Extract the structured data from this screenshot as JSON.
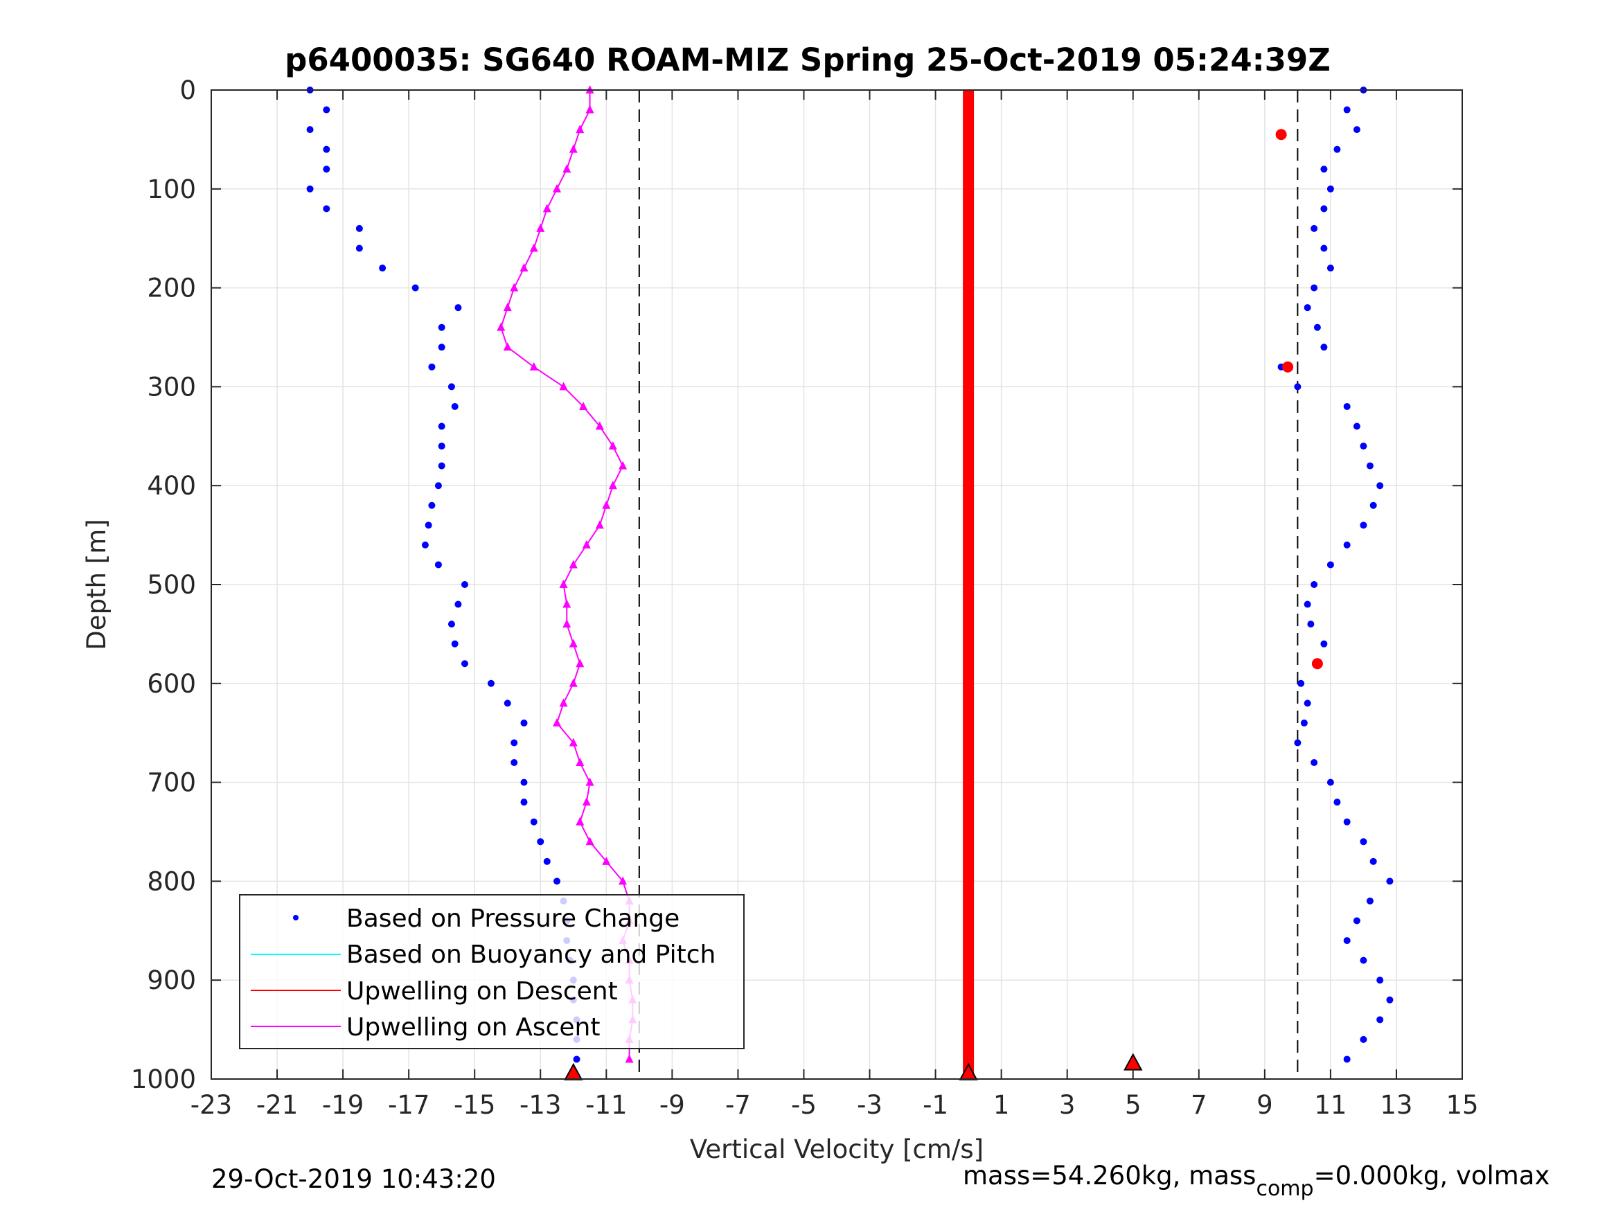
{
  "chart_data": {
    "type": "scatter",
    "title": "p6400035: SG640 ROAM-MIZ Spring 25-Oct-2019 05:24:39Z",
    "xlabel": "Vertical Velocity [cm/s]",
    "ylabel": "Depth [m]",
    "xlim": [
      -23,
      15
    ],
    "ylim": [
      0,
      1000
    ],
    "y_reversed": true,
    "x_ticks": [
      -23,
      -21,
      -19,
      -17,
      -15,
      -13,
      -11,
      -9,
      -7,
      -5,
      -3,
      -1,
      1,
      3,
      5,
      7,
      9,
      11,
      13,
      15
    ],
    "y_ticks": [
      0,
      100,
      200,
      300,
      400,
      500,
      600,
      700,
      800,
      900,
      1000
    ],
    "grid": true,
    "legend_position": "bottom-left",
    "reference_lines_x": [
      -10,
      10
    ],
    "colors": {
      "pressure": "#0000ff",
      "buoyancy": "#00ffff",
      "descent": "#ff0000",
      "ascent": "#ff00ff",
      "reference": "#000000"
    },
    "series": [
      {
        "name": "Based on Pressure Change",
        "style": "dots",
        "descent_profile": {
          "depth": [
            0,
            20,
            40,
            60,
            80,
            100,
            120,
            140,
            160,
            180,
            200,
            220,
            240,
            260,
            280,
            300,
            320,
            340,
            360,
            380,
            400,
            420,
            440,
            460,
            480,
            500,
            520,
            540,
            560,
            580,
            600,
            620,
            640,
            660,
            680,
            700,
            720,
            740,
            760,
            780,
            800,
            820,
            840,
            860,
            880,
            900,
            920,
            940,
            960,
            980
          ],
          "velocity": [
            -20,
            -19.5,
            -20,
            -19.5,
            -19.5,
            -20,
            -19.5,
            -18.5,
            -18.5,
            -17.8,
            -16.8,
            -15.5,
            -16,
            -16,
            -16.3,
            -15.7,
            -15.6,
            -16,
            -16,
            -16,
            -16.1,
            -16.3,
            -16.4,
            -16.5,
            -16.1,
            -15.3,
            -15.5,
            -15.7,
            -15.6,
            -15.3,
            -14.5,
            -14,
            -13.5,
            -13.8,
            -13.8,
            -13.5,
            -13.5,
            -13.2,
            -13,
            -12.8,
            -12.5,
            -12.3,
            -12.2,
            -12.2,
            -12.1,
            -12,
            -12,
            -11.9,
            -11.9,
            -11.9
          ]
        },
        "ascent_profile": {
          "depth": [
            0,
            20,
            40,
            60,
            80,
            100,
            120,
            140,
            160,
            180,
            200,
            220,
            240,
            260,
            280,
            300,
            320,
            340,
            360,
            380,
            400,
            420,
            440,
            460,
            480,
            500,
            520,
            540,
            560,
            580,
            600,
            620,
            640,
            660,
            680,
            700,
            720,
            740,
            760,
            780,
            800,
            820,
            840,
            860,
            880,
            900,
            920,
            940,
            960,
            980
          ],
          "velocity": [
            12,
            11.5,
            11.8,
            11.2,
            10.8,
            11,
            10.8,
            10.5,
            10.8,
            11,
            10.5,
            10.3,
            10.6,
            10.8,
            9.5,
            10,
            11.5,
            11.8,
            12,
            12.2,
            12.5,
            12.3,
            12,
            11.5,
            11,
            10.5,
            10.3,
            10.4,
            10.8,
            10.6,
            10.1,
            10.3,
            10.2,
            10,
            10.5,
            11,
            11.2,
            11.5,
            12,
            12.3,
            12.8,
            12.2,
            11.8,
            11.5,
            12,
            12.5,
            12.8,
            12.5,
            12,
            11.5
          ]
        }
      },
      {
        "name": "Based on Buoyancy and Pitch",
        "style": "line",
        "depth": [],
        "velocity": []
      },
      {
        "name": "Upwelling on Descent",
        "style": "line",
        "depth": [
          0,
          100,
          200,
          300,
          400,
          500,
          600,
          700,
          800,
          900,
          1000
        ],
        "velocity": [
          0,
          0,
          0,
          0,
          0,
          0,
          0,
          0,
          0,
          0,
          0
        ]
      },
      {
        "name": "Upwelling on Ascent",
        "style": "line-triangles",
        "depth": [
          0,
          20,
          40,
          60,
          80,
          100,
          120,
          140,
          160,
          180,
          200,
          220,
          240,
          260,
          280,
          300,
          320,
          340,
          360,
          380,
          400,
          420,
          440,
          460,
          480,
          500,
          520,
          540,
          560,
          580,
          600,
          620,
          640,
          660,
          680,
          700,
          720,
          740,
          760,
          780,
          800,
          820,
          840,
          860,
          880,
          900,
          920,
          940,
          960,
          980
        ],
        "velocity": [
          -11.5,
          -11.5,
          -11.8,
          -12,
          -12.2,
          -12.5,
          -12.8,
          -13,
          -13.2,
          -13.5,
          -13.8,
          -14,
          -14.2,
          -14,
          -13.2,
          -12.3,
          -11.7,
          -11.2,
          -10.8,
          -10.5,
          -10.8,
          -11,
          -11.2,
          -11.6,
          -12,
          -12.3,
          -12.2,
          -12.2,
          -12,
          -11.8,
          -12,
          -12.3,
          -12.5,
          -12,
          -11.8,
          -11.5,
          -11.6,
          -11.8,
          -11.5,
          -11,
          -10.5,
          -10.3,
          -10.3,
          -10.5,
          -10.3,
          -10.3,
          -10.2,
          -10.2,
          -10.3,
          -10.3
        ]
      }
    ],
    "annotations": [
      {
        "depth": 45,
        "velocity": 9.5,
        "color": "#ff0000",
        "marker": "dot"
      },
      {
        "depth": 280,
        "velocity": 9.7,
        "color": "#ff0000",
        "marker": "dot"
      },
      {
        "depth": 580,
        "velocity": 10.6,
        "color": "#ff0000",
        "marker": "dot"
      },
      {
        "depth": 985,
        "velocity": 5,
        "color": "#ff0000",
        "marker": "triangle"
      },
      {
        "depth": 995,
        "velocity": -12,
        "color": "#ff0000",
        "marker": "triangle"
      },
      {
        "depth": 995,
        "velocity": 0,
        "color": "#ff0000",
        "marker": "triangle"
      }
    ]
  },
  "footer": {
    "date": "29-Oct-2019 10:43:20",
    "mass_prefix": "mass=54.260kg, mass",
    "mass_sub": "comp",
    "mass_suffix": "=0.000kg, volmax"
  }
}
